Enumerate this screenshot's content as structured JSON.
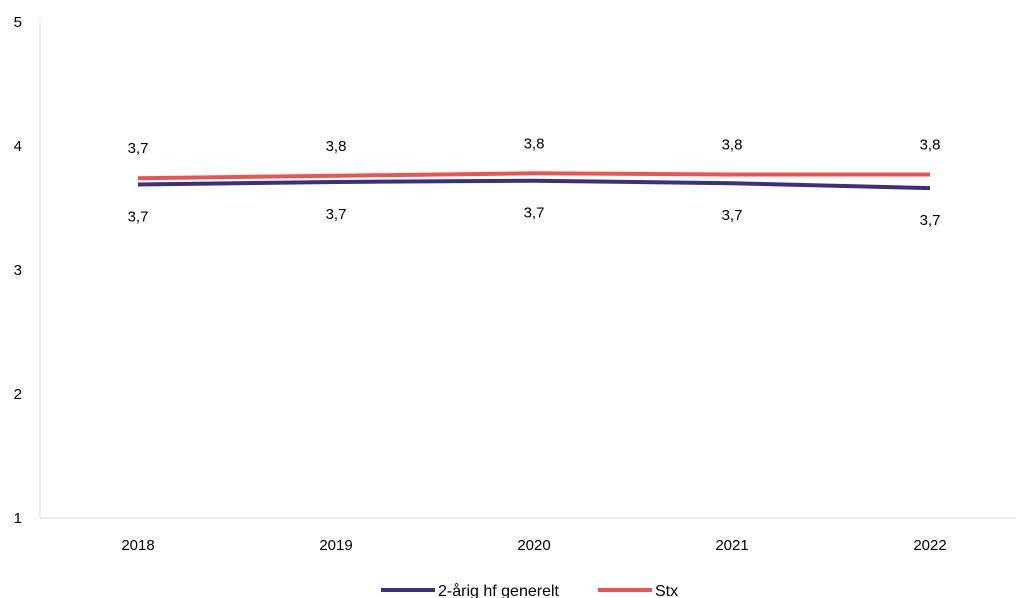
{
  "chart_data": {
    "type": "line",
    "categories": [
      "2018",
      "2019",
      "2020",
      "2021",
      "2022"
    ],
    "ylim": [
      1,
      5
    ],
    "yticks": [
      1,
      2,
      3,
      4,
      5
    ],
    "grid": false,
    "legend_position": "bottom-center",
    "series": [
      {
        "name": "2-årig hf generelt",
        "color": "#3b2f7f",
        "values": [
          3.69,
          3.71,
          3.72,
          3.7,
          3.66
        ],
        "labels": [
          "3,7",
          "3,7",
          "3,7",
          "3,7",
          "3,7"
        ],
        "label_position": "below"
      },
      {
        "name": "Stx",
        "color": "#ef5350",
        "values": [
          3.74,
          3.76,
          3.78,
          3.77,
          3.77
        ],
        "labels": [
          "3,7",
          "3,8",
          "3,8",
          "3,8",
          "3,8"
        ],
        "label_position": "above"
      }
    ]
  }
}
